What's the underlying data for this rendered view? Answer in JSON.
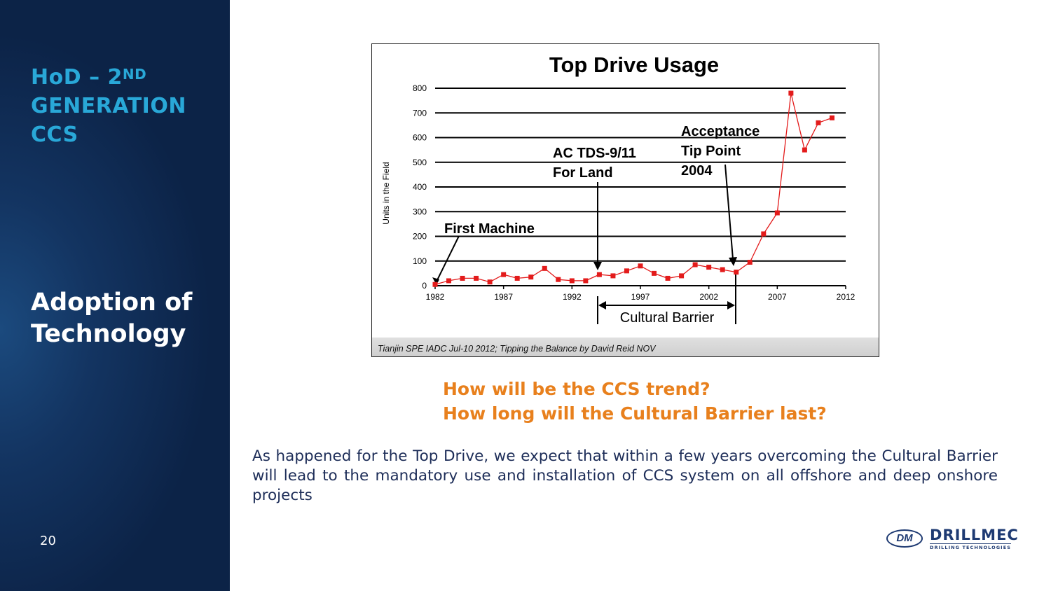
{
  "sidebar": {
    "title_lead": "HoD – 2",
    "title_sup": "ND",
    "title_line2": "GENERATION",
    "title_line3": "CCS",
    "subtitle_line1": "Adoption of",
    "subtitle_line2": "Technology",
    "page_number": "20"
  },
  "chart_data": {
    "type": "line",
    "title": "Top Drive Usage",
    "xlabel": "",
    "ylabel": "Units in the Field",
    "xlim": [
      1982,
      2012
    ],
    "ylim": [
      0,
      800
    ],
    "x_ticks": [
      "1982",
      "1987",
      "1992",
      "1997",
      "2002",
      "2007",
      "2012"
    ],
    "y_ticks": [
      "0",
      "100",
      "200",
      "300",
      "400",
      "500",
      "600",
      "700",
      "800"
    ],
    "grid": true,
    "series": [
      {
        "color": "#e31b1b",
        "x": [
          1982,
          1983,
          1984,
          1985,
          1986,
          1987,
          1988,
          1989,
          1990,
          1991,
          1992,
          1993,
          1994,
          1995,
          1996,
          1997,
          1998,
          1999,
          2000,
          2001,
          2002,
          2003,
          2004,
          2005,
          2006,
          2007,
          2008,
          2009,
          2010,
          2011
        ],
        "y": [
          5,
          20,
          30,
          30,
          15,
          45,
          30,
          35,
          70,
          25,
          20,
          20,
          45,
          40,
          60,
          80,
          50,
          30,
          40,
          85,
          75,
          65,
          55,
          95,
          210,
          295,
          780,
          550,
          660,
          680
        ]
      }
    ],
    "annotations": {
      "first_machine": "First Machine",
      "ac_tds_line1": "AC TDS-9/11",
      "ac_tds_line2": "For Land",
      "acceptance_line1": "Acceptance",
      "acceptance_line2": "Tip Point",
      "acceptance_line3": "2004",
      "cultural_barrier": "Cultural Barrier"
    },
    "source": "Tianjin SPE IADC Jul-10 2012; Tipping the Balance by David Reid NOV"
  },
  "questions": {
    "line1": "How will be the CCS trend?",
    "line2": "How long will the Cultural Barrier last?"
  },
  "body_text": "As happened for the Top Drive, we expect that within a few years overcoming the Cultural Barrier will lead to the mandatory use and installation of CCS system on all offshore and deep onshore projects",
  "logo": {
    "emblem": "DM",
    "name": "DRILLMEC",
    "tagline": "DRILLING TECHNOLOGIES"
  },
  "colors": {
    "sidebar_bg": "#0c2347",
    "sidebar_title": "#29a8d8",
    "question": "#e8801d",
    "body_text": "#1d2d58",
    "series": "#e31b1b"
  }
}
